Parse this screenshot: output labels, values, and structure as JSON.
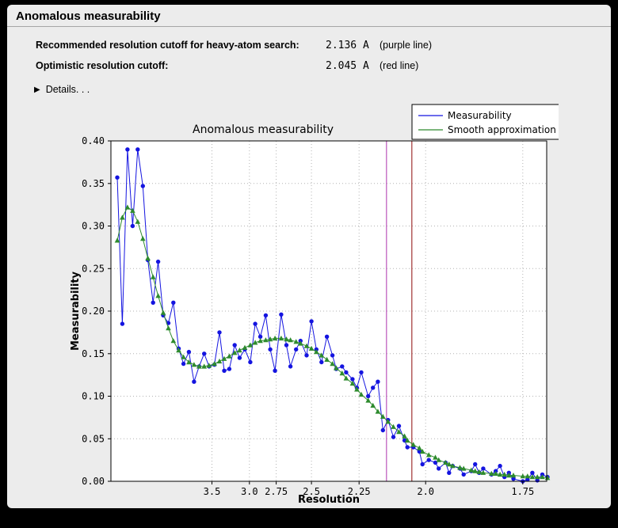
{
  "header": {
    "title": "Anomalous measurability"
  },
  "info": {
    "rows": [
      {
        "label": "Recommended resolution cutoff for heavy-atom search:",
        "value": "2.136 A",
        "note": "(purple line)"
      },
      {
        "label": "Optimistic resolution cutoff:",
        "value": "2.045 A",
        "note": "(red line)"
      }
    ]
  },
  "details": {
    "icon": "▶",
    "label": "Details. . ."
  },
  "chart_data": {
    "type": "line",
    "title": "Anomalous measurability",
    "xlabel": "Resolution",
    "ylabel": "Measurability",
    "ylim": [
      0.0,
      0.4
    ],
    "yticks": [
      0.0,
      0.05,
      0.1,
      0.15,
      0.2,
      0.25,
      0.3,
      0.35,
      0.4
    ],
    "xticks": [
      3.5,
      3.0,
      2.75,
      2.5,
      2.25,
      2.0,
      1.75
    ],
    "xtick_labels": [
      "3.5",
      "3.0",
      "2.75",
      "2.5",
      "2.25",
      "2.0",
      "1.75"
    ],
    "x_axis_scale": "linear in 1/d^2, resolution decreasing left to right",
    "x_range_inv_d2": [
      0.002,
      0.3454
    ],
    "grid": true,
    "x_resolution": [
      11.95,
      9.53,
      8.16,
      7.24,
      6.58,
      6.07,
      5.67,
      5.33,
      5.05,
      4.81,
      4.6,
      4.42,
      4.25,
      4.11,
      3.97,
      3.85,
      3.74,
      3.64,
      3.55,
      3.46,
      3.38,
      3.31,
      3.24,
      3.17,
      3.11,
      3.05,
      2.99,
      2.94,
      2.89,
      2.84,
      2.8,
      2.76,
      2.71,
      2.67,
      2.64,
      2.6,
      2.57,
      2.53,
      2.5,
      2.47,
      2.44,
      2.41,
      2.38,
      2.36,
      2.33,
      2.31,
      2.28,
      2.26,
      2.24,
      2.21,
      2.19,
      2.17,
      2.15,
      2.13,
      2.11,
      2.09,
      2.07,
      2.06,
      2.04,
      2.02,
      2.01,
      1.99,
      1.97,
      1.96,
      1.94,
      1.93,
      1.92,
      1.9,
      1.89,
      1.87,
      1.86,
      1.85,
      1.84,
      1.82,
      1.81,
      1.8,
      1.79,
      1.78,
      1.77,
      1.75,
      1.74,
      1.73,
      1.72,
      1.71,
      1.7
    ],
    "series": [
      {
        "name": "Measurability",
        "color": "#1414e0",
        "marker": "circle",
        "values": [
          0.357,
          0.185,
          0.39,
          0.3,
          0.39,
          0.347,
          0.26,
          0.21,
          0.258,
          0.195,
          0.186,
          0.21,
          0.156,
          0.138,
          0.152,
          0.117,
          0.135,
          0.15,
          0.135,
          0.137,
          0.175,
          0.13,
          0.132,
          0.16,
          0.145,
          0.155,
          0.14,
          0.185,
          0.17,
          0.195,
          0.155,
          0.13,
          0.196,
          0.16,
          0.135,
          0.155,
          0.165,
          0.148,
          0.188,
          0.155,
          0.14,
          0.17,
          0.148,
          0.132,
          0.135,
          0.128,
          0.12,
          0.11,
          0.128,
          0.1,
          0.11,
          0.117,
          0.06,
          0.072,
          0.052,
          0.065,
          0.048,
          0.04,
          0.04,
          0.035,
          0.02,
          0.025,
          0.022,
          0.015,
          0.022,
          0.01,
          0.018,
          0.015,
          0.008,
          0.012,
          0.02,
          0.01,
          0.015,
          0.008,
          0.012,
          0.018,
          0.005,
          0.01,
          0.003,
          0.0,
          0.002,
          0.01,
          0.001,
          0.008,
          0.005
        ]
      },
      {
        "name": "Smooth approximation",
        "color": "#2e8b2e",
        "marker": "triangle",
        "values": [
          0.283,
          0.31,
          0.322,
          0.318,
          0.305,
          0.285,
          0.262,
          0.24,
          0.218,
          0.198,
          0.18,
          0.165,
          0.154,
          0.146,
          0.14,
          0.137,
          0.135,
          0.135,
          0.136,
          0.138,
          0.141,
          0.144,
          0.147,
          0.151,
          0.154,
          0.157,
          0.16,
          0.163,
          0.165,
          0.166,
          0.167,
          0.168,
          0.168,
          0.167,
          0.166,
          0.164,
          0.162,
          0.159,
          0.156,
          0.152,
          0.148,
          0.143,
          0.138,
          0.133,
          0.127,
          0.121,
          0.115,
          0.108,
          0.102,
          0.095,
          0.089,
          0.082,
          0.076,
          0.07,
          0.064,
          0.058,
          0.053,
          0.048,
          0.043,
          0.039,
          0.035,
          0.031,
          0.028,
          0.025,
          0.022,
          0.02,
          0.018,
          0.016,
          0.015,
          0.013,
          0.012,
          0.011,
          0.01,
          0.009,
          0.009,
          0.008,
          0.008,
          0.007,
          0.007,
          0.006,
          0.006,
          0.005,
          0.005,
          0.005,
          0.004
        ]
      }
    ],
    "vlines": [
      {
        "resolution": 2.136,
        "color": "#bb55bb",
        "label": "purple line",
        "name": "purple-cutoff-line"
      },
      {
        "resolution": 2.045,
        "color": "#a03232",
        "label": "red line",
        "name": "red-cutoff-line"
      }
    ],
    "legend": {
      "position": "top-right",
      "entries": [
        "Measurability",
        "Smooth approximation"
      ]
    }
  }
}
